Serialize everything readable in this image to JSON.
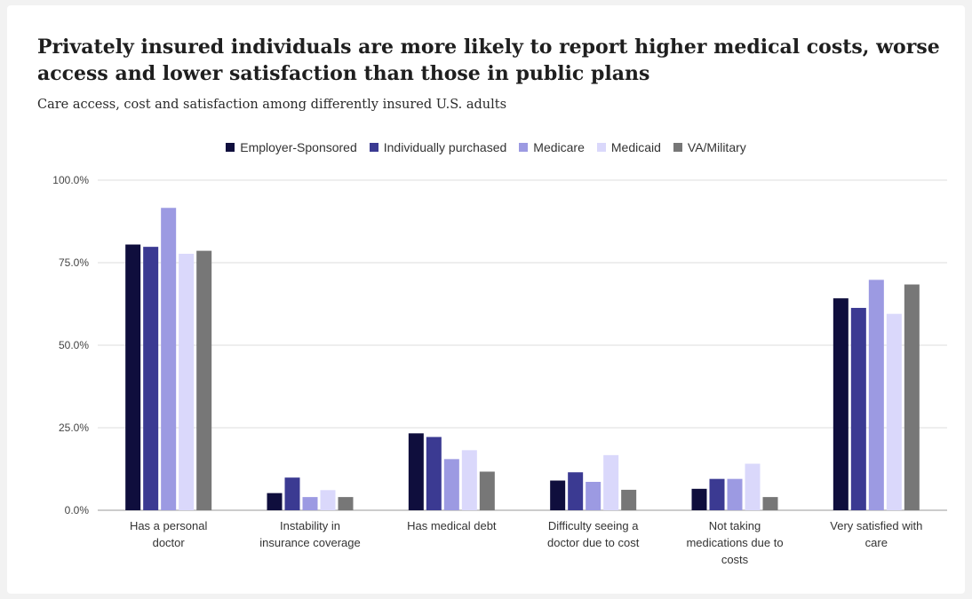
{
  "title": "Privately insured individuals are more likely to report higher medical costs, worse access and lower satisfaction than those in public plans",
  "subtitle": "Care access, cost and satisfaction among differently insured U.S. adults",
  "chart_data": {
    "type": "bar",
    "categories": [
      [
        "Has a personal",
        "doctor"
      ],
      [
        "Instability in",
        "insurance coverage"
      ],
      [
        "Has medical debt"
      ],
      [
        "Difficulty seeing a",
        "doctor due to cost"
      ],
      [
        "Not taking",
        "medications due to",
        "costs"
      ],
      [
        "Very satisfied with",
        "care"
      ]
    ],
    "series": [
      {
        "name": "Employer-Sponsored",
        "color": "#0f0e3d",
        "values": [
          80.5,
          5.2,
          23.3,
          9.0,
          6.5,
          64.2
        ]
      },
      {
        "name": "Individually purchased",
        "color": "#3b3a92",
        "values": [
          79.8,
          9.9,
          22.2,
          11.5,
          9.5,
          61.3
        ]
      },
      {
        "name": "Medicare",
        "color": "#9c9ae2",
        "values": [
          91.6,
          4.0,
          15.5,
          8.6,
          9.5,
          69.8
        ]
      },
      {
        "name": "Medicaid",
        "color": "#dad8fb",
        "values": [
          77.7,
          6.1,
          18.2,
          16.7,
          14.1,
          59.5
        ]
      },
      {
        "name": "VA/Military",
        "color": "#777777",
        "values": [
          78.6,
          4.0,
          11.7,
          6.2,
          4.0,
          68.4
        ]
      }
    ],
    "yticks": [
      "0.0%",
      "25.0%",
      "50.0%",
      "75.0%",
      "100.0%"
    ],
    "ylim": [
      0,
      100
    ],
    "grid": true,
    "legend_position": "top-center"
  }
}
